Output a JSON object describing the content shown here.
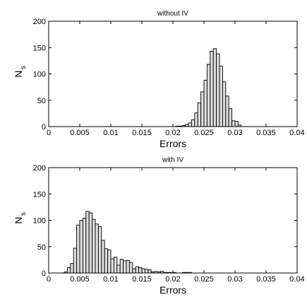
{
  "chart_data": [
    {
      "type": "bar",
      "title": "without IV",
      "xlabel": "Errors",
      "ylabel": "N",
      "ylabel_subscript": "s",
      "xlim": [
        0,
        0.04
      ],
      "ylim": [
        0,
        200
      ],
      "xticks": [
        "0",
        "0.005",
        "0.01",
        "0.015",
        "0.02",
        "0.025",
        "0.03",
        "0.035",
        "0.04"
      ],
      "yticks": [
        "0",
        "50",
        "100",
        "150",
        "200"
      ],
      "bin_width": 0.0005,
      "bin_starts": [
        0.0205,
        0.021,
        0.0215,
        0.022,
        0.0225,
        0.023,
        0.0235,
        0.024,
        0.0245,
        0.025,
        0.0255,
        0.026,
        0.0265,
        0.027,
        0.0275,
        0.028,
        0.0285,
        0.029,
        0.0295,
        0.03,
        0.0305
      ],
      "values": [
        1,
        1,
        2,
        4,
        7,
        13,
        26,
        45,
        66,
        88,
        118,
        143,
        148,
        138,
        115,
        85,
        58,
        34,
        11,
        10,
        3
      ]
    },
    {
      "type": "bar",
      "title": "with IV",
      "xlabel": "Errors",
      "ylabel": "N",
      "ylabel_subscript": "s",
      "xlim": [
        0,
        0.04
      ],
      "ylim": [
        0,
        200
      ],
      "xticks": [
        "0",
        "0.005",
        "0.01",
        "0.015",
        "0.02",
        "0.025",
        "0.03",
        "0.035",
        "0.04"
      ],
      "yticks": [
        "0",
        "50",
        "100",
        "150",
        "200"
      ],
      "bin_width": 0.0005,
      "bin_starts": [
        0.0025,
        0.003,
        0.0035,
        0.004,
        0.0045,
        0.005,
        0.0055,
        0.006,
        0.0065,
        0.007,
        0.0075,
        0.008,
        0.0085,
        0.009,
        0.0095,
        0.01,
        0.0105,
        0.011,
        0.0115,
        0.012,
        0.0125,
        0.013,
        0.0135,
        0.014,
        0.0145,
        0.015,
        0.0155,
        0.016,
        0.0165,
        0.017,
        0.0175,
        0.018,
        0.0185,
        0.019,
        0.0195,
        0.02,
        0.0205,
        0.021,
        0.0215,
        0.022,
        0.0225
      ],
      "values": [
        2,
        10,
        18,
        47,
        91,
        100,
        104,
        117,
        114,
        102,
        93,
        88,
        62,
        46,
        44,
        27,
        30,
        15,
        26,
        23,
        24,
        20,
        8,
        12,
        10,
        8,
        7,
        6,
        2,
        3,
        2,
        3,
        1,
        1,
        1,
        1,
        0,
        0,
        1,
        1,
        1
      ]
    }
  ]
}
